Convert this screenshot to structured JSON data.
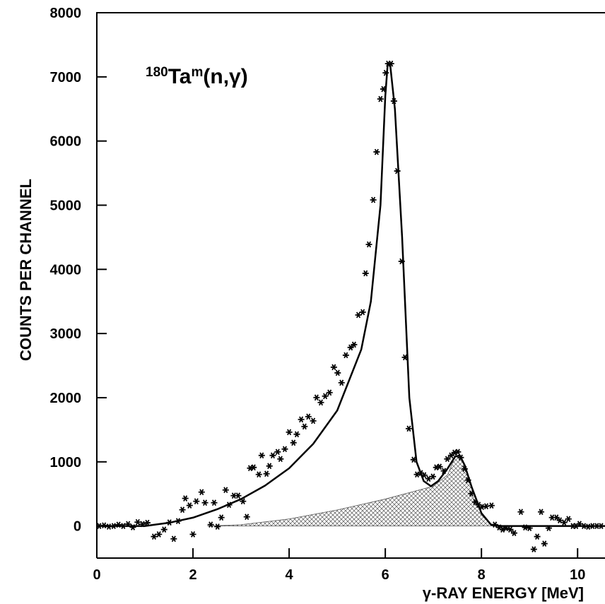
{
  "chart_data": {
    "type": "scatter",
    "annotation": {
      "mass": "180",
      "element": "Ta",
      "state": "m",
      "reaction": "(n,γ)"
    },
    "x_label": "γ-RAY ENERGY [MeV]",
    "y_label": "COUNTS PER CHANNEL",
    "xlim": [
      0,
      10.57
    ],
    "ylim": [
      -500,
      8000
    ],
    "xticks": [
      0,
      2,
      4,
      6,
      8,
      10
    ],
    "yticks": [
      0,
      1000,
      2000,
      3000,
      4000,
      5000,
      6000,
      7000,
      8000
    ],
    "series": [
      {
        "mark": "background",
        "color": "#555555",
        "x": [
          2.3,
          3,
          4,
          5,
          6,
          6.5,
          7,
          7.3,
          7.45,
          7.55,
          7.65,
          7.8,
          8,
          8.2,
          8.4
        ],
        "values": [
          0,
          20,
          110,
          250,
          420,
          520,
          620,
          800,
          1080,
          1100,
          950,
          600,
          200,
          20,
          0
        ]
      },
      {
        "mark": "line",
        "color": "#000000",
        "x": [
          0,
          1,
          1.2,
          1.5,
          2,
          2.5,
          3,
          3.5,
          4,
          4.5,
          5,
          5.5,
          5.7,
          5.9,
          6.0,
          6.05,
          6.1,
          6.2,
          6.35,
          6.5,
          6.65,
          6.8,
          6.95,
          7.1,
          7.3,
          7.45,
          7.55,
          7.65,
          7.8,
          8.0,
          8.2,
          8.4,
          10.57
        ],
        "values": [
          0,
          0,
          20,
          50,
          130,
          260,
          420,
          630,
          900,
          1280,
          1800,
          2750,
          3500,
          5000,
          6700,
          7200,
          7200,
          6500,
          4500,
          2000,
          1000,
          700,
          620,
          700,
          900,
          1080,
          1100,
          950,
          600,
          200,
          20,
          0,
          0
        ]
      },
      {
        "mark": "asterisk",
        "color": "#000000",
        "x": [
          0.05,
          0.15,
          0.25,
          0.35,
          0.45,
          0.55,
          0.65,
          0.75,
          0.85,
          0.95,
          1.05,
          1.19,
          1.29,
          1.4,
          1.51,
          1.6,
          1.69,
          1.78,
          1.84,
          1.93,
          2.0,
          2.07,
          2.18,
          2.25,
          2.37,
          2.44,
          2.51,
          2.59,
          2.68,
          2.75,
          2.85,
          2.94,
          3.04,
          3.12,
          3.19,
          3.26,
          3.37,
          3.43,
          3.53,
          3.59,
          3.66,
          3.76,
          3.82,
          3.91,
          4.0,
          4.09,
          4.16,
          4.25,
          4.32,
          4.4,
          4.5,
          4.57,
          4.66,
          4.75,
          4.84,
          4.93,
          5.01,
          5.09,
          5.18,
          5.28,
          5.35,
          5.44,
          5.53,
          5.59,
          5.66,
          5.75,
          5.82,
          5.9,
          5.96,
          6.01,
          6.06,
          6.12,
          6.18,
          6.25,
          6.34,
          6.41,
          6.49,
          6.59,
          6.66,
          6.74,
          6.81,
          6.9,
          6.99,
          7.06,
          7.13,
          7.22,
          7.29,
          7.37,
          7.44,
          7.51,
          7.57,
          7.65,
          7.72,
          7.79,
          7.87,
          7.94,
          8.01,
          8.1,
          8.21,
          8.28,
          8.37,
          8.44,
          8.51,
          8.6,
          8.68,
          8.82,
          8.91,
          9.0,
          9.09,
          9.16,
          9.24,
          9.31,
          9.4,
          9.47,
          9.56,
          9.63,
          9.72,
          9.81,
          9.9,
          9.97,
          10.04,
          10.13,
          10.22,
          10.31,
          10.4,
          10.49
        ],
        "values": [
          0,
          10,
          -10,
          0,
          20,
          0,
          30,
          -20,
          60,
          30,
          50,
          -165,
          -130,
          -55,
          55,
          -200,
          77,
          253,
          430,
          320,
          -130,
          385,
          528,
          363,
          22,
          363,
          -10,
          132,
          561,
          330,
          473,
          473,
          385,
          143,
          902,
          913,
          803,
          1100,
          814,
          935,
          1100,
          1155,
          1045,
          1199,
          1463,
          1298,
          1430,
          1661,
          1551,
          1705,
          1639,
          2002,
          1925,
          2024,
          2079,
          2475,
          2387,
          2233,
          2662,
          2783,
          2827,
          3289,
          3333,
          3938,
          4389,
          5082,
          5830,
          6655,
          6810,
          7063,
          7206,
          7206,
          6623,
          5533,
          4125,
          2629,
          1518,
          1034,
          803,
          825,
          792,
          737,
          770,
          913,
          924,
          858,
          1045,
          1100,
          1144,
          1155,
          1067,
          891,
          715,
          506,
          374,
          330,
          297,
          308,
          319,
          22,
          -22,
          -55,
          -33,
          -55,
          -110,
          220,
          -22,
          -33,
          -363,
          -165,
          220,
          -275,
          -33,
          132,
          132,
          88,
          55,
          110,
          0,
          0,
          33,
          0,
          -11,
          0,
          0,
          0
        ]
      }
    ]
  }
}
